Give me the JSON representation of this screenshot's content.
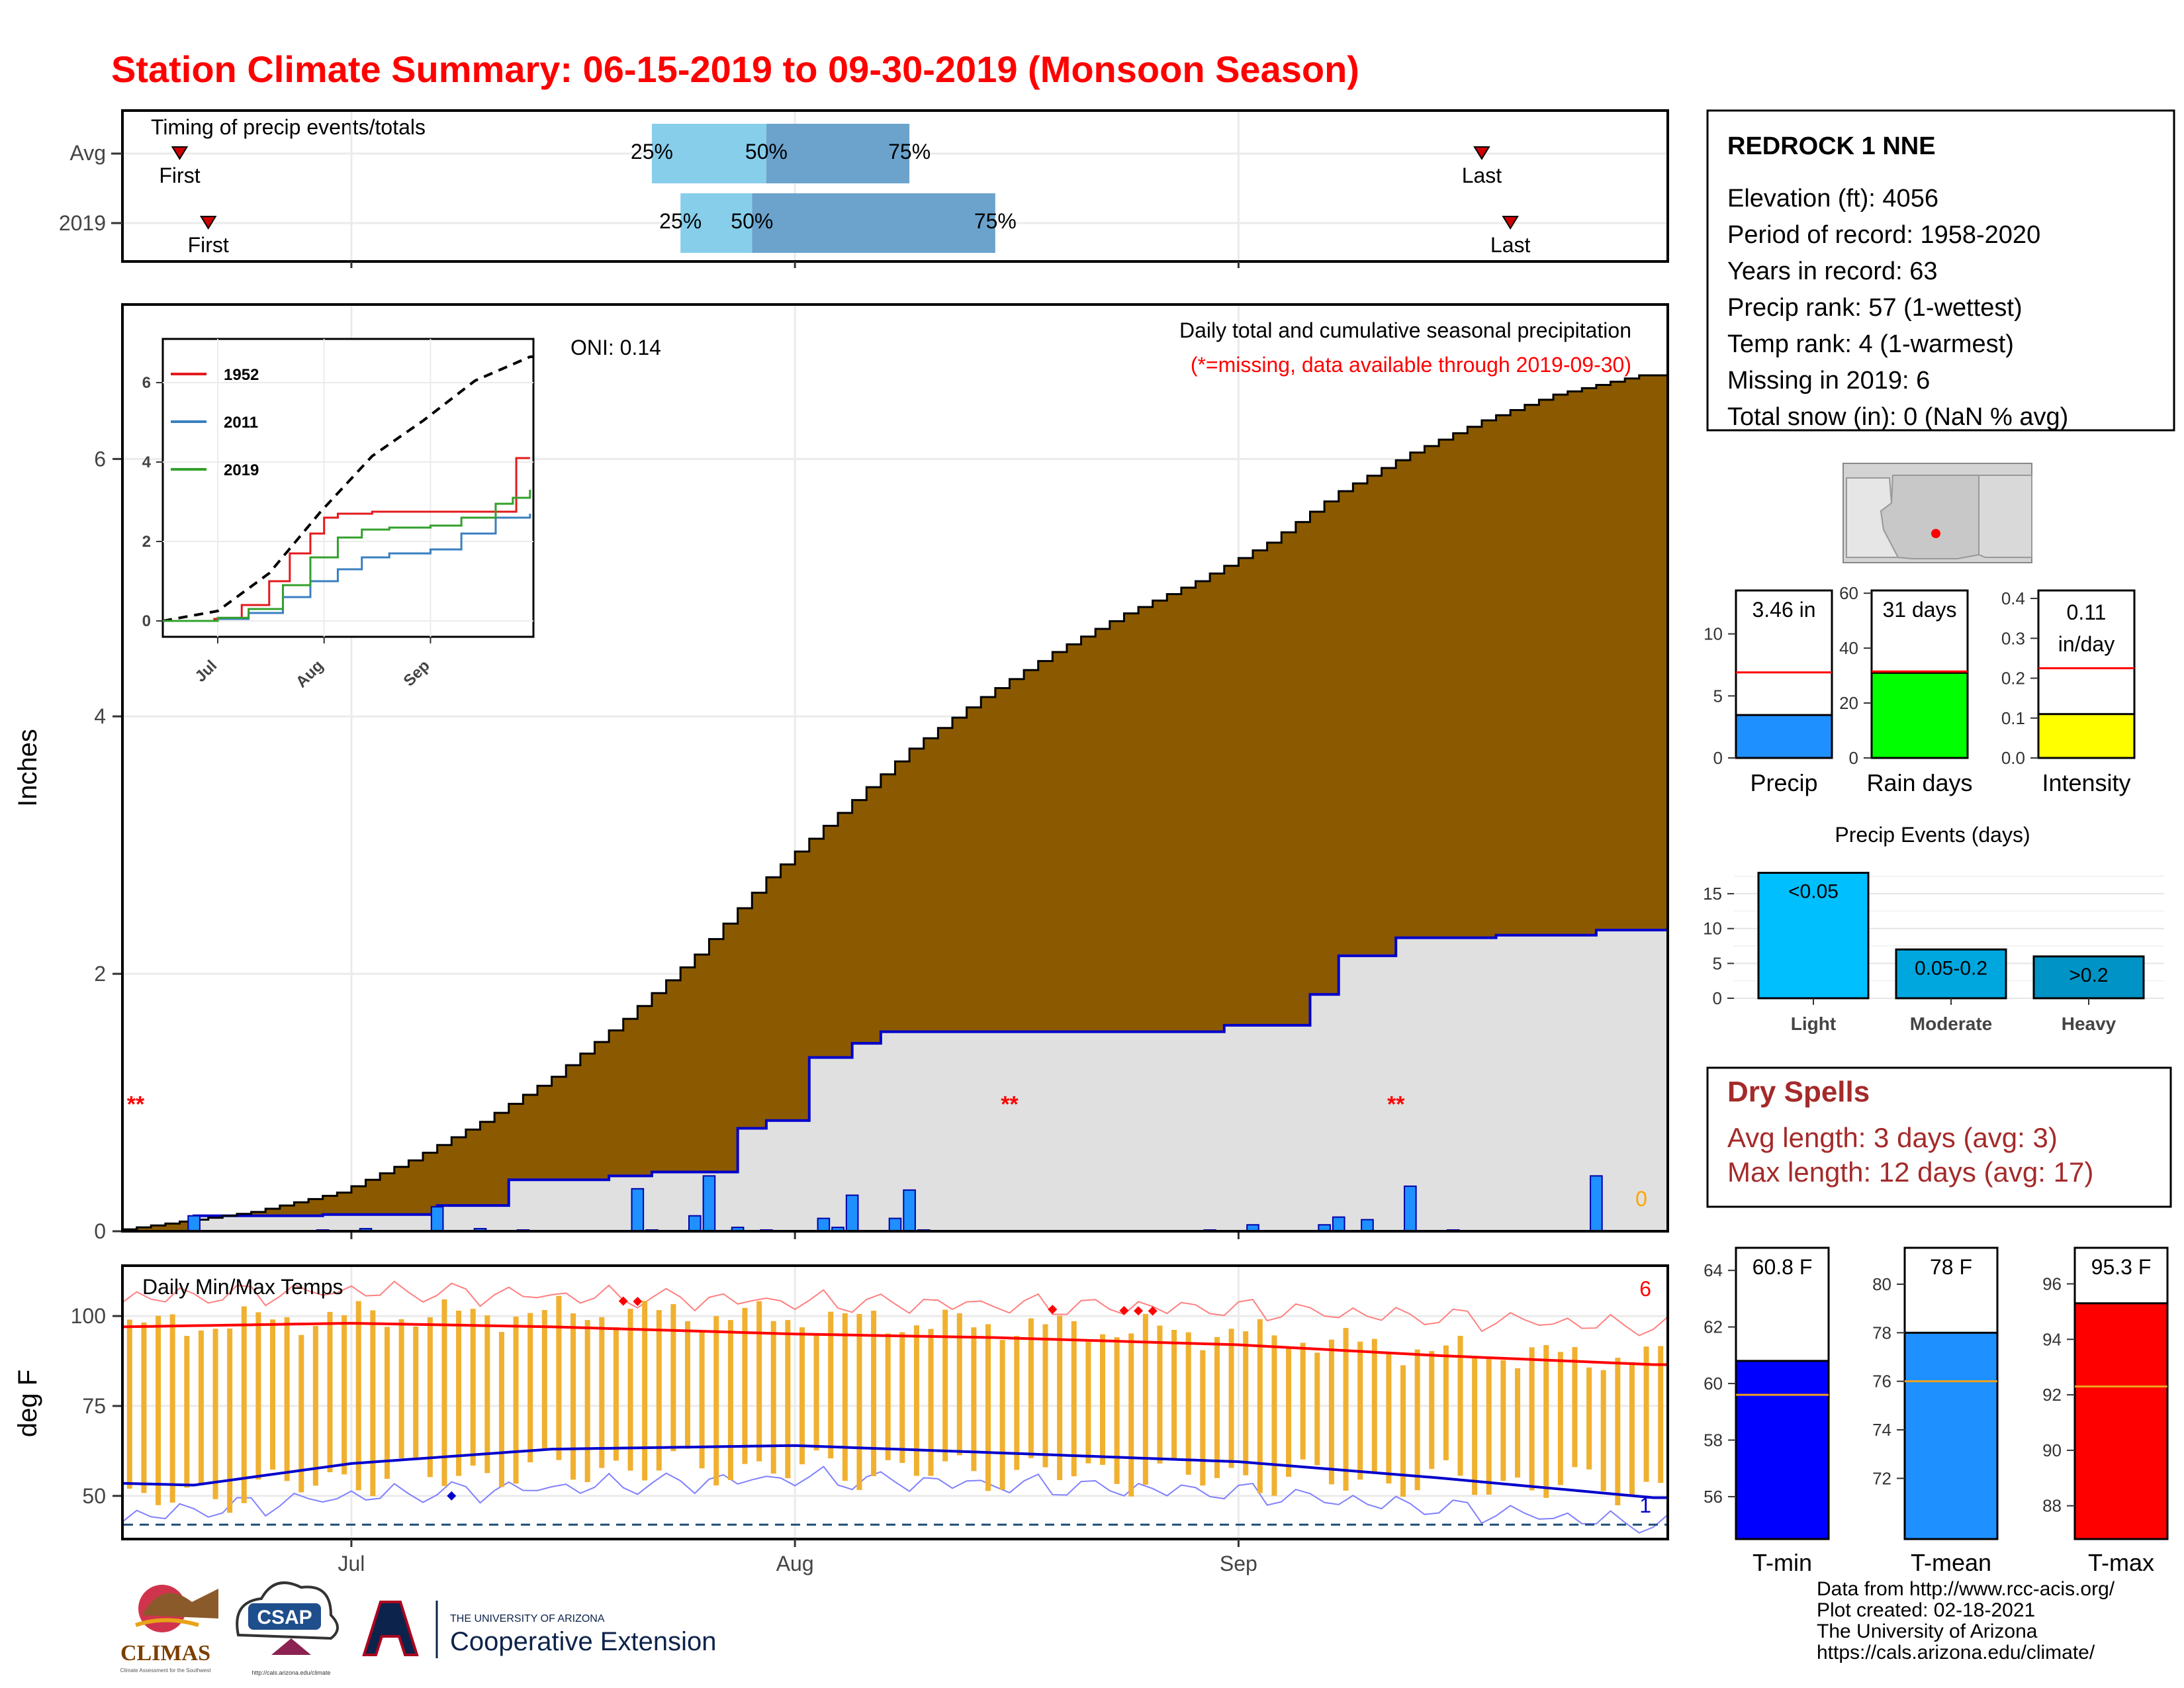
{
  "title": "Station Climate Summary: 06-15-2019 to 09-30-2019 (Monsoon Season)",
  "colors": {
    "title_red": "#ff0000",
    "cumulative_brown": "#8b5a00",
    "avg_fill": "#e0e0e0",
    "cumulative_2019_line": "#0000cc",
    "daily_bar": "#1e90ff",
    "box_25_50": "#87ceeb",
    "box_50_75": "#6ba3cc",
    "precip_bar": "#1e90ff",
    "raindays_bar": "#00ff00",
    "intensity_bar": "#ffff00",
    "events_bar": "#00bfff",
    "tmin_bar": "#0000ff",
    "tmean_bar": "#1e90ff",
    "tmax_bar": "#ff0000",
    "temp_range_bar": "#f0b030",
    "dry_spell_text": "#a52a2a"
  },
  "timing_panel": {
    "title": "Timing of precip events/totals",
    "rows": [
      {
        "label": "Avg",
        "first_date": "2019-06-19",
        "p25": "2019-07-22",
        "p50": "2019-07-30",
        "p75": "2019-08-09",
        "last_date": "2019-09-18",
        "first_label": "First",
        "last_label": "Last",
        "p25_label": "25%",
        "p50_label": "50%",
        "p75_label": "75%"
      },
      {
        "label": "2019",
        "first_date": "2019-06-21",
        "p25": "2019-07-24",
        "p50": "2019-07-29",
        "p75": "2019-08-15",
        "last_date": "2019-09-20",
        "first_label": "First",
        "last_label": "Last",
        "p25_label": "25%",
        "p50_label": "50%",
        "p75_label": "75%"
      }
    ]
  },
  "main_panel": {
    "ylabel": "Inches",
    "y_ticks": [
      0,
      2,
      4,
      6
    ],
    "ylim": [
      0,
      7.2
    ],
    "oni_label": "ONI: 0.14",
    "subtitle": "Daily total and cumulative seasonal precipitation",
    "missing_note": "(*=missing, data available through 2019-09-30)",
    "snow_marker": "0",
    "missing_marker": "**",
    "missing_dates": [
      "2019-06-15",
      "2019-08-16",
      "2019-09-12"
    ]
  },
  "inset": {
    "y_ticks": [
      0,
      2,
      4,
      6
    ],
    "x_ticks": [
      "Jul",
      "Aug",
      "Sep"
    ],
    "legend": [
      {
        "name": "1952",
        "color": "#e31a1c"
      },
      {
        "name": "2011",
        "color": "#3a7fc1"
      },
      {
        "name": "2019",
        "color": "#33a02c"
      }
    ]
  },
  "temp_panel": {
    "title": "Daily Min/Max Temps",
    "ylabel": "deg F",
    "y_ticks": [
      50,
      75,
      100
    ],
    "ylim": [
      38,
      114
    ],
    "record_high_count": "6",
    "record_low_count": "1",
    "x_ticks": [
      "Jul",
      "Aug",
      "Sep"
    ]
  },
  "station_info": {
    "name": "REDROCK 1 NNE",
    "lines": [
      "Elevation (ft): 4056",
      "Period of record: 1958-2020",
      "Years in record: 63",
      "Precip rank: 57 (1-wettest)",
      "Temp rank: 4 (1-warmest)",
      "Missing in 2019: 6",
      "Total snow (in): 0 (NaN % avg)"
    ]
  },
  "summary_bars": [
    {
      "name": "Precip",
      "label": "3.46 in",
      "value": 3.46,
      "avg": 6.9,
      "ymax": 13.5,
      "ticks": [
        0,
        5,
        10
      ],
      "color": "#1e90ff"
    },
    {
      "name": "Rain days",
      "label": "31 days",
      "value": 31,
      "avg": 31.5,
      "ymax": 61,
      "ticks": [
        0,
        20,
        40,
        60
      ],
      "color": "#00ff00"
    },
    {
      "name": "Intensity",
      "label": "0.11 in/day",
      "label_line1": "0.11",
      "label_line2": "in/day",
      "value": 0.11,
      "avg": 0.225,
      "ymax": 0.42,
      "ticks": [
        0.0,
        0.1,
        0.2,
        0.3,
        0.4
      ],
      "color": "#ffff00"
    }
  ],
  "precip_events": {
    "title": "Precip Events (days)",
    "y_ticks": [
      0,
      5,
      10,
      15
    ],
    "ymax": 19,
    "categories": [
      "Light",
      "Moderate",
      "Heavy"
    ],
    "bar_labels": [
      "<0.05",
      "0.05-0.2",
      ">0.2"
    ],
    "values": [
      18,
      7,
      6
    ],
    "colors": [
      "#00bfff",
      "#00a7df",
      "#0094c6"
    ]
  },
  "dry_spells": {
    "title": "Dry Spells",
    "lines": [
      "Avg length: 3 days (avg: 3)",
      "Max length: 12 days (avg: 17)"
    ]
  },
  "temp_bars": [
    {
      "name": "T-min",
      "label": "60.8 F",
      "value": 60.8,
      "avg": 59.6,
      "ymin": 54.5,
      "ymax": 64.8,
      "ticks": [
        56,
        58,
        60,
        62,
        64
      ],
      "color": "#0000ff"
    },
    {
      "name": "T-mean",
      "label": "78 F",
      "value": 78.0,
      "avg": 76.0,
      "ymin": 69.5,
      "ymax": 81.5,
      "ticks": [
        72,
        74,
        76,
        78,
        80
      ],
      "color": "#1e90ff"
    },
    {
      "name": "T-max",
      "label": "95.3 F",
      "value": 95.3,
      "avg": 92.3,
      "ymin": 86.8,
      "ymax": 97.3,
      "ticks": [
        88,
        90,
        92,
        94,
        96
      ],
      "color": "#ff0000"
    }
  ],
  "credits": [
    "Data from http://www.rcc-acis.org/",
    "Plot created: 02-18-2021",
    "The University of Arizona",
    "https://cals.arizona.edu/climate/"
  ],
  "logos": {
    "climas": "CLIMAS",
    "climas_sub": "Climate Assessment for the Southwest",
    "csap": "CSAP",
    "csap_sub": "http://cals.arizona.edu/climate",
    "ua_line1": "THE UNIVERSITY OF ARIZONA",
    "ua_line2": "Cooperative Extension"
  },
  "chart_data": [
    {
      "type": "area",
      "title": "Daily total and cumulative seasonal precipitation",
      "ylabel": "Inches",
      "ylim": [
        0,
        7.2
      ],
      "x_start": "2019-06-15",
      "x_end": "2019-09-30",
      "avg_cumulative_knots": {
        "x": [
          "2019-06-15",
          "2019-06-25",
          "2019-07-01",
          "2019-07-06",
          "2019-07-11",
          "2019-07-16",
          "2019-07-21",
          "2019-07-26",
          "2019-07-31",
          "2019-08-05",
          "2019-08-10",
          "2019-08-15",
          "2019-08-20",
          "2019-08-25",
          "2019-08-30",
          "2019-09-04",
          "2019-09-09",
          "2019-09-14",
          "2019-09-19",
          "2019-09-24",
          "2019-09-30"
        ],
        "y": [
          0.0,
          0.15,
          0.3,
          0.55,
          0.85,
          1.2,
          1.65,
          2.15,
          2.75,
          3.25,
          3.75,
          4.15,
          4.5,
          4.8,
          5.05,
          5.35,
          5.75,
          6.05,
          6.3,
          6.5,
          6.65
        ]
      },
      "series_2019_cumulative": {
        "x": [
          "2019-06-15",
          "2019-06-19",
          "2019-06-20",
          "2019-06-28",
          "2019-06-29",
          "2019-07-06",
          "2019-07-07",
          "2019-07-09",
          "2019-07-12",
          "2019-07-18",
          "2019-07-19",
          "2019-07-21",
          "2019-07-22",
          "2019-07-27",
          "2019-07-28",
          "2019-07-29",
          "2019-07-30",
          "2019-08-01",
          "2019-08-02",
          "2019-08-04",
          "2019-08-05",
          "2019-08-06",
          "2019-08-07",
          "2019-08-30",
          "2019-08-31",
          "2019-09-05",
          "2019-09-06",
          "2019-09-07",
          "2019-09-08",
          "2019-09-11",
          "2019-09-12",
          "2019-09-18",
          "2019-09-19",
          "2019-09-20",
          "2019-09-26",
          "2019-09-30"
        ],
        "y": [
          0.0,
          0.0,
          0.12,
          0.12,
          0.13,
          0.13,
          0.2,
          0.2,
          0.4,
          0.4,
          0.43,
          0.43,
          0.46,
          0.46,
          0.8,
          0.8,
          0.86,
          0.86,
          1.35,
          1.35,
          1.46,
          1.46,
          1.55,
          1.55,
          1.6,
          1.6,
          1.84,
          1.84,
          2.14,
          2.14,
          2.28,
          2.28,
          2.3,
          2.3,
          2.34,
          2.34
        ]
      },
      "daily_precip": [
        {
          "date": "2019-06-20",
          "value": 0.12
        },
        {
          "date": "2019-06-29",
          "value": 0.01
        },
        {
          "date": "2019-07-02",
          "value": 0.02
        },
        {
          "date": "2019-07-07",
          "value": 0.19
        },
        {
          "date": "2019-07-10",
          "value": 0.02
        },
        {
          "date": "2019-07-13",
          "value": 0.01
        },
        {
          "date": "2019-07-21",
          "value": 0.33
        },
        {
          "date": "2019-07-22",
          "value": 0.01
        },
        {
          "date": "2019-07-25",
          "value": 0.12
        },
        {
          "date": "2019-07-26",
          "value": 0.43
        },
        {
          "date": "2019-07-28",
          "value": 0.03
        },
        {
          "date": "2019-07-30",
          "value": 0.01
        },
        {
          "date": "2019-08-03",
          "value": 0.1
        },
        {
          "date": "2019-08-04",
          "value": 0.03
        },
        {
          "date": "2019-08-05",
          "value": 0.28
        },
        {
          "date": "2019-08-08",
          "value": 0.1
        },
        {
          "date": "2019-08-09",
          "value": 0.32
        },
        {
          "date": "2019-08-10",
          "value": 0.01
        },
        {
          "date": "2019-08-30",
          "value": 0.01
        },
        {
          "date": "2019-09-02",
          "value": 0.05
        },
        {
          "date": "2019-09-07",
          "value": 0.05
        },
        {
          "date": "2019-09-08",
          "value": 0.11
        },
        {
          "date": "2019-09-10",
          "value": 0.09
        },
        {
          "date": "2019-09-13",
          "value": 0.35
        },
        {
          "date": "2019-09-16",
          "value": 0.01
        },
        {
          "date": "2019-09-26",
          "value": 0.43
        }
      ]
    },
    {
      "type": "line",
      "title": "",
      "x_start": "2019-06-15",
      "x_end": "2019-09-30",
      "ylim": [
        0,
        7.2
      ],
      "series": [
        {
          "name": "1952",
          "x": [
            "2019-06-15",
            "2019-06-30",
            "2019-07-08",
            "2019-07-16",
            "2019-07-22",
            "2019-07-28",
            "2019-08-01",
            "2019-08-05",
            "2019-08-15",
            "2019-09-05",
            "2019-09-26",
            "2019-09-26",
            "2019-09-30"
          ],
          "y": [
            0.0,
            0.05,
            0.4,
            1.0,
            1.7,
            2.2,
            2.6,
            2.7,
            2.75,
            2.75,
            2.8,
            4.1,
            4.1
          ]
        },
        {
          "name": "2011",
          "x": [
            "2019-06-15",
            "2019-07-01",
            "2019-07-10",
            "2019-07-20",
            "2019-07-28",
            "2019-08-05",
            "2019-08-12",
            "2019-08-20",
            "2019-09-01",
            "2019-09-10",
            "2019-09-20",
            "2019-09-30"
          ],
          "y": [
            0.0,
            0.05,
            0.2,
            0.6,
            1.0,
            1.3,
            1.6,
            1.7,
            1.8,
            2.2,
            2.6,
            2.7
          ]
        },
        {
          "name": "2019",
          "x": [
            "2019-06-15",
            "2019-07-01",
            "2019-07-10",
            "2019-07-20",
            "2019-07-28",
            "2019-08-05",
            "2019-08-12",
            "2019-08-20",
            "2019-09-01",
            "2019-09-10",
            "2019-09-20",
            "2019-09-25",
            "2019-09-30"
          ],
          "y": [
            0.0,
            0.08,
            0.3,
            0.9,
            1.6,
            2.1,
            2.3,
            2.35,
            2.4,
            2.6,
            2.95,
            3.1,
            3.3
          ]
        }
      ],
      "avg_cumulative_knots": {
        "x": [
          "2019-06-15",
          "2019-07-01",
          "2019-07-16",
          "2019-07-31",
          "2019-08-15",
          "2019-08-30",
          "2019-09-14",
          "2019-09-30"
        ],
        "y": [
          0.0,
          0.25,
          1.2,
          2.75,
          4.15,
          5.05,
          6.05,
          6.65
        ]
      }
    },
    {
      "type": "bar",
      "title": "Daily Min/Max Temps",
      "ylabel": "deg F",
      "ylim": [
        38,
        114
      ],
      "x_start": "2019-06-15",
      "x_end": "2019-09-30",
      "avg_tmax_knots": {
        "x": [
          "2019-06-15",
          "2019-07-01",
          "2019-07-15",
          "2019-08-01",
          "2019-08-15",
          "2019-09-01",
          "2019-09-15",
          "2019-09-30"
        ],
        "y": [
          97,
          98,
          97,
          95,
          94,
          92,
          89,
          86.5
        ]
      },
      "avg_tmin_knots": {
        "x": [
          "2019-06-15",
          "2019-06-20",
          "2019-07-01",
          "2019-07-15",
          "2019-08-01",
          "2019-08-15",
          "2019-09-01",
          "2019-09-15",
          "2019-09-30"
        ],
        "y": [
          53.5,
          53,
          59,
          63,
          64,
          62,
          59.5,
          55,
          49.5
        ]
      },
      "record_high_knots": {
        "x": [
          "2019-06-15",
          "2019-07-01",
          "2019-08-01",
          "2019-09-01",
          "2019-09-30"
        ],
        "y": [
          105,
          107,
          104,
          102,
          97
        ]
      },
      "record_low_knots": {
        "x": [
          "2019-06-15",
          "2019-07-01",
          "2019-08-01",
          "2019-09-01",
          "2019-09-30"
        ],
        "y": [
          44,
          50,
          55,
          51,
          42
        ]
      },
      "new_record_highs": [
        "2019-07-20",
        "2019-07-21",
        "2019-08-19",
        "2019-08-24",
        "2019-08-25",
        "2019-08-26"
      ],
      "new_record_lows": [
        "2019-07-08"
      ],
      "daily_range_note": "Orange bars span daily min to max",
      "daily_pattern_knots": {
        "x": [
          "2019-06-15",
          "2019-07-01",
          "2019-07-20",
          "2019-08-10",
          "2019-09-01",
          "2019-09-15",
          "2019-09-30"
        ],
        "tmax": [
          97,
          100,
          101,
          98,
          95,
          90,
          88
        ],
        "tmin": [
          48,
          55,
          58,
          57,
          55,
          54,
          52
        ]
      }
    }
  ]
}
